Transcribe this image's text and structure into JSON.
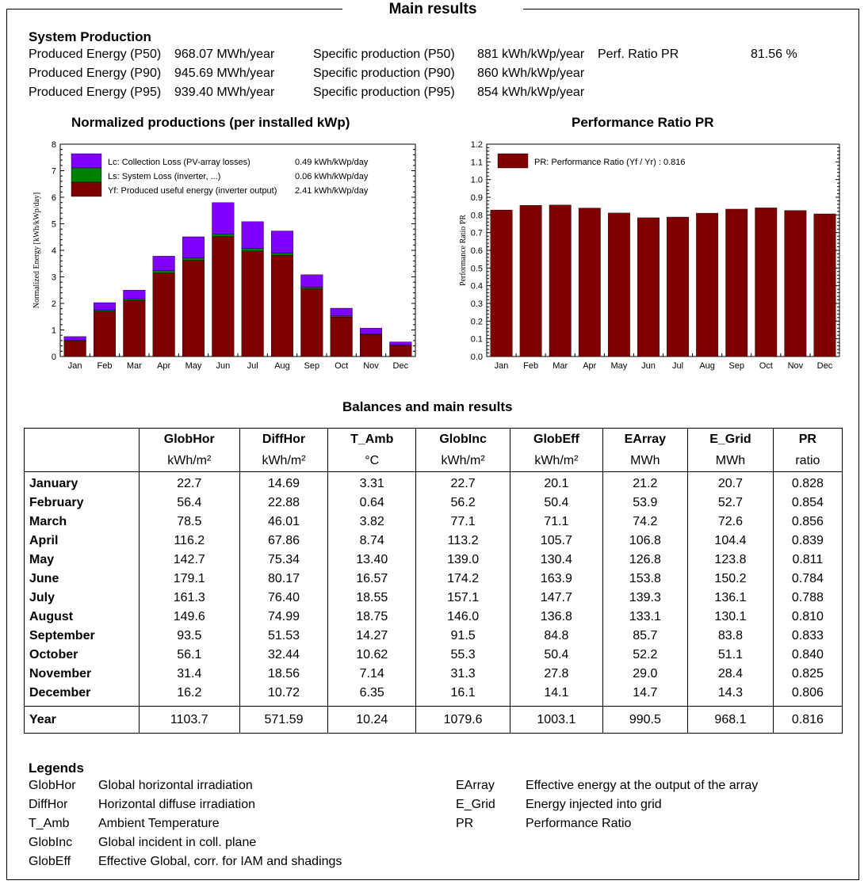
{
  "title": "Main results",
  "system_production": {
    "heading": "System Production",
    "rows": [
      {
        "label": "Produced Energy (P50)",
        "value": "968.07 MWh/year",
        "spec_label": "Specific production (P50)",
        "spec_value": "881 kWh/kWp/year",
        "pr_label": "Perf. Ratio PR",
        "pr_value": "81.56 %"
      },
      {
        "label": "Produced Energy (P90)",
        "value": "945.69 MWh/year",
        "spec_label": "Specific production (P90)",
        "spec_value": "860 kWh/kWp/year",
        "pr_label": "",
        "pr_value": ""
      },
      {
        "label": "Produced Energy (P95)",
        "value": "939.40 MWh/year",
        "spec_label": "Specific production (P95)",
        "spec_value": "854 kWh/kWp/year",
        "pr_label": "",
        "pr_value": ""
      }
    ]
  },
  "colors": {
    "yf": "#7f0000",
    "ls": "#008000",
    "lc": "#8000ff"
  },
  "chart_data": [
    {
      "type": "bar",
      "title": "Normalized productions (per installed kWp)",
      "xlabel": "",
      "ylabel": "Normalized Energy [kWh/kWp/day]",
      "ylim": [
        0,
        8
      ],
      "yticks": [
        "0",
        "1",
        "2",
        "3",
        "4",
        "5",
        "6",
        "7",
        "8"
      ],
      "categories": [
        "Jan",
        "Feb",
        "Mar",
        "Apr",
        "May",
        "Jun",
        "Jul",
        "Aug",
        "Sep",
        "Oct",
        "Nov",
        "Dec"
      ],
      "stacked": true,
      "legend_position": "top-left",
      "series": [
        {
          "name": "Yf: Produced useful energy  (inverter output)",
          "legend_value": "2.41 kWh/kWp/day",
          "color": "#7f0000",
          "values": [
            0.59,
            1.7,
            2.11,
            3.14,
            3.62,
            4.52,
            3.98,
            3.81,
            2.55,
            1.49,
            0.83,
            0.42
          ]
        },
        {
          "name": "Ls: System Loss  (inverter, ...)",
          "legend_value": "0.06 kWh/kWp/day",
          "color": "#008000",
          "values": [
            0.02,
            0.05,
            0.06,
            0.09,
            0.09,
            0.1,
            0.09,
            0.09,
            0.06,
            0.04,
            0.02,
            0.01
          ]
        },
        {
          "name": "Lc: Collection Loss (PV-array losses)",
          "legend_value": "0.49 kWh/kWp/day",
          "color": "#8000ff",
          "values": [
            0.14,
            0.28,
            0.33,
            0.55,
            0.8,
            1.18,
            1.01,
            0.83,
            0.47,
            0.29,
            0.22,
            0.12
          ]
        }
      ]
    },
    {
      "type": "bar",
      "title": "Performance Ratio PR",
      "xlabel": "",
      "ylabel": "Performance Ratio PR",
      "ylim": [
        0,
        1.2
      ],
      "yticks": [
        "0.0",
        "0.1",
        "0.2",
        "0.3",
        "0.4",
        "0.5",
        "0.6",
        "0.7",
        "0.8",
        "0.9",
        "1.0",
        "1.1",
        "1.2"
      ],
      "categories": [
        "Jan",
        "Feb",
        "Mar",
        "Apr",
        "May",
        "Jun",
        "Jul",
        "Aug",
        "Sep",
        "Oct",
        "Nov",
        "Dec"
      ],
      "legend_position": "top-left",
      "series": [
        {
          "name": "PR: Performance Ratio (Yf / Yr) :  0.816",
          "color": "#7f0000",
          "values": [
            0.828,
            0.854,
            0.856,
            0.839,
            0.811,
            0.784,
            0.788,
            0.81,
            0.833,
            0.84,
            0.825,
            0.806
          ]
        }
      ]
    }
  ],
  "balances": {
    "title": "Balances and main results",
    "headers": [
      "",
      "GlobHor",
      "DiffHor",
      "T_Amb",
      "GlobInc",
      "GlobEff",
      "EArray",
      "E_Grid",
      "PR"
    ],
    "units": [
      "",
      "kWh/m²",
      "kWh/m²",
      "°C",
      "kWh/m²",
      "kWh/m²",
      "MWh",
      "MWh",
      "ratio"
    ],
    "rows": [
      [
        "January",
        "22.7",
        "14.69",
        "3.31",
        "22.7",
        "20.1",
        "21.2",
        "20.7",
        "0.828"
      ],
      [
        "February",
        "56.4",
        "22.88",
        "0.64",
        "56.2",
        "50.4",
        "53.9",
        "52.7",
        "0.854"
      ],
      [
        "March",
        "78.5",
        "46.01",
        "3.82",
        "77.1",
        "71.1",
        "74.2",
        "72.6",
        "0.856"
      ],
      [
        "April",
        "116.2",
        "67.86",
        "8.74",
        "113.2",
        "105.7",
        "106.8",
        "104.4",
        "0.839"
      ],
      [
        "May",
        "142.7",
        "75.34",
        "13.40",
        "139.0",
        "130.4",
        "126.8",
        "123.8",
        "0.811"
      ],
      [
        "June",
        "179.1",
        "80.17",
        "16.57",
        "174.2",
        "163.9",
        "153.8",
        "150.2",
        "0.784"
      ],
      [
        "July",
        "161.3",
        "76.40",
        "18.55",
        "157.1",
        "147.7",
        "139.3",
        "136.1",
        "0.788"
      ],
      [
        "August",
        "149.6",
        "74.99",
        "18.75",
        "146.0",
        "136.8",
        "133.1",
        "130.1",
        "0.810"
      ],
      [
        "September",
        "93.5",
        "51.53",
        "14.27",
        "91.5",
        "84.8",
        "85.7",
        "83.8",
        "0.833"
      ],
      [
        "October",
        "56.1",
        "32.44",
        "10.62",
        "55.3",
        "50.4",
        "52.2",
        "51.1",
        "0.840"
      ],
      [
        "November",
        "31.4",
        "18.56",
        "7.14",
        "31.3",
        "27.8",
        "29.0",
        "28.4",
        "0.825"
      ],
      [
        "December",
        "16.2",
        "10.72",
        "6.35",
        "16.1",
        "14.1",
        "14.7",
        "14.3",
        "0.806"
      ]
    ],
    "year": [
      "Year",
      "1103.7",
      "571.59",
      "10.24",
      "1079.6",
      "1003.1",
      "990.5",
      "968.1",
      "0.816"
    ]
  },
  "legends": {
    "heading": "Legends",
    "left": [
      {
        "abbr": "GlobHor",
        "desc": "Global horizontal irradiation"
      },
      {
        "abbr": "DiffHor",
        "desc": "Horizontal diffuse irradiation"
      },
      {
        "abbr": "T_Amb",
        "desc": "Ambient Temperature"
      },
      {
        "abbr": "GlobInc",
        "desc": "Global incident in coll. plane"
      },
      {
        "abbr": "GlobEff",
        "desc": "Effective Global, corr. for IAM and shadings"
      }
    ],
    "right": [
      {
        "abbr": "EArray",
        "desc": "Effective energy at the output of the array"
      },
      {
        "abbr": "E_Grid",
        "desc": "Energy injected into grid"
      },
      {
        "abbr": "PR",
        "desc": "Performance Ratio"
      }
    ]
  }
}
